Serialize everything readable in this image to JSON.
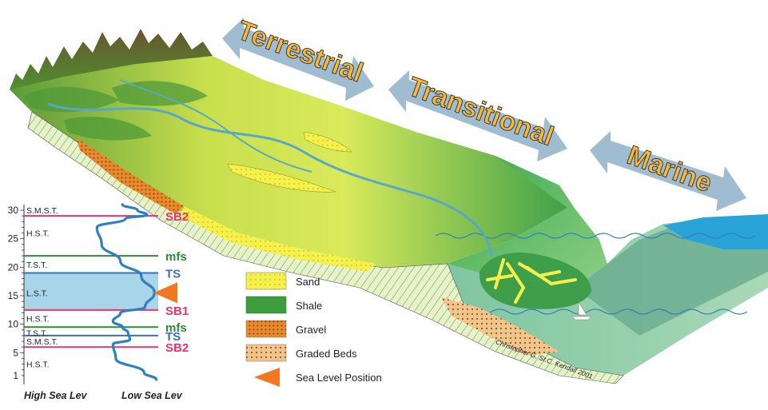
{
  "zones": {
    "terrestrial": "Terrestrial",
    "transitional": "Transitional",
    "marine": "Marine"
  },
  "chart_data": {
    "type": "line",
    "title": "",
    "ylim": [
      0,
      31
    ],
    "y_ticks": [
      5,
      10,
      15,
      20,
      25,
      30
    ],
    "x_labels": {
      "left": "High Sea Lev",
      "right": "Low Sea Lev"
    },
    "systems_tracts": [
      {
        "label": "S.M.S.T.",
        "y": 30
      },
      {
        "label": "H.S.T.",
        "y": 26
      },
      {
        "label": "T.S.T.",
        "y": 20.5
      },
      {
        "label": "L.S.T.",
        "y": 15.5
      },
      {
        "label": "H.S.T.",
        "y": 11
      },
      {
        "label": "T.S.T.",
        "y": 8.5
      },
      {
        "label": "S.M.S.T.",
        "y": 7
      },
      {
        "label": "H.S.T.",
        "y": 3
      }
    ],
    "surfaces": [
      {
        "label": "SB2",
        "y": 29,
        "color": "#e8336b"
      },
      {
        "label": "mfs",
        "y": 22,
        "color": "#2e8b3a"
      },
      {
        "label": "TS",
        "y": 19,
        "color": "#3b6fb6"
      },
      {
        "label": "SB1",
        "y": 12.5,
        "color": "#e8336b"
      },
      {
        "label": "mfs",
        "y": 9.5,
        "color": "#2e8b3a"
      },
      {
        "label": "TS",
        "y": 8,
        "color": "#3b6fb6"
      },
      {
        "label": "SB2",
        "y": 6,
        "color": "#e8336b"
      }
    ],
    "lowstand_band": [
      12.5,
      19
    ],
    "sea_level_marker_y": 15.5,
    "curve": [
      {
        "x": 0.62,
        "y": 31
      },
      {
        "x": 0.78,
        "y": 30
      },
      {
        "x": 0.88,
        "y": 29.2
      },
      {
        "x": 0.65,
        "y": 28.5
      },
      {
        "x": 0.35,
        "y": 27
      },
      {
        "x": 0.4,
        "y": 24
      },
      {
        "x": 0.6,
        "y": 21
      },
      {
        "x": 0.82,
        "y": 18.5
      },
      {
        "x": 0.96,
        "y": 15.5
      },
      {
        "x": 0.86,
        "y": 13
      },
      {
        "x": 0.6,
        "y": 12
      },
      {
        "x": 0.52,
        "y": 10.5
      },
      {
        "x": 0.62,
        "y": 9.5
      },
      {
        "x": 0.68,
        "y": 8.5
      },
      {
        "x": 0.7,
        "y": 7.3
      },
      {
        "x": 0.52,
        "y": 6.5
      },
      {
        "x": 0.55,
        "y": 4
      },
      {
        "x": 0.85,
        "y": 1.5
      },
      {
        "x": 0.98,
        "y": 0.3
      }
    ]
  },
  "legend": [
    {
      "label": "Sand",
      "swatch": "sand"
    },
    {
      "label": "Shale",
      "swatch": "shale"
    },
    {
      "label": "Gravel",
      "swatch": "gravel"
    },
    {
      "label": "Graded Beds",
      "swatch": "graded"
    },
    {
      "label": "Sea Level Position",
      "swatch": "triangle"
    }
  ],
  "credit": "Christopher G. St.C. Kendall 2001",
  "colors": {
    "band": "#a8d6e8",
    "curve": "#2f7fc1",
    "arrow": "#9fbcd0",
    "zone_text": "#f7b93c",
    "sea": "#2aa3d8",
    "triangle": "#f07820"
  }
}
